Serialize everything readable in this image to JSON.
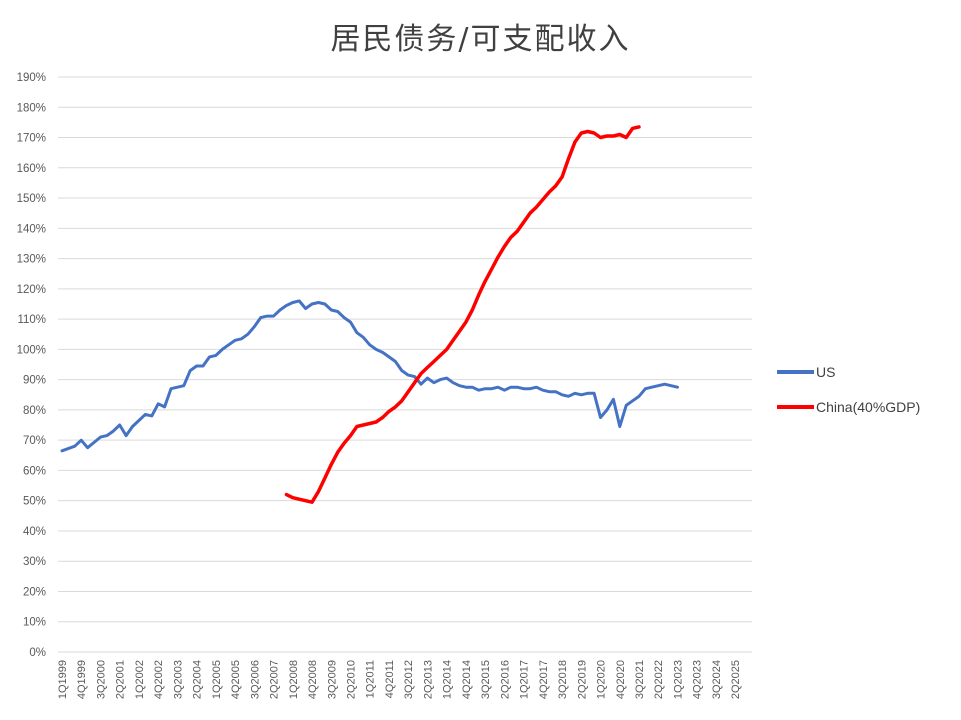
{
  "chart_data": {
    "type": "line",
    "title": "居民债务/可支配收入",
    "xlabel": "",
    "ylabel": "",
    "ylim": [
      0,
      190
    ],
    "y_ticks": [
      0,
      10,
      20,
      30,
      40,
      50,
      60,
      70,
      80,
      90,
      100,
      110,
      120,
      130,
      140,
      150,
      160,
      170,
      180,
      190
    ],
    "y_tick_format": "percent",
    "x_range": [
      "1Q1999",
      "4Q2025"
    ],
    "x_tick_labels": [
      "1Q1999",
      "4Q1999",
      "3Q2000",
      "2Q2001",
      "1Q2002",
      "4Q2002",
      "3Q2003",
      "2Q2004",
      "1Q2005",
      "4Q2005",
      "3Q2006",
      "2Q2007",
      "1Q2008",
      "4Q2008",
      "3Q2009",
      "2Q2010",
      "1Q2011",
      "4Q2011",
      "3Q2012",
      "2Q2013",
      "1Q2014",
      "4Q2014",
      "3Q2015",
      "2Q2016",
      "1Q2017",
      "4Q2017",
      "3Q2018",
      "2Q2019",
      "1Q2020",
      "4Q2020",
      "3Q2021",
      "2Q2022",
      "1Q2023",
      "4Q2023",
      "3Q2024",
      "2Q2025"
    ],
    "grid": true,
    "legend": "right",
    "series": [
      {
        "name": "US",
        "color": "#4472C4",
        "points": [
          [
            "1Q1999",
            66.5
          ],
          [
            "3Q1999",
            68
          ],
          [
            "4Q1999",
            70
          ],
          [
            "1Q2000",
            67.5
          ],
          [
            "3Q2000",
            71
          ],
          [
            "4Q2000",
            71.5
          ],
          [
            "1Q2001",
            73
          ],
          [
            "2Q2001",
            75
          ],
          [
            "3Q2001",
            71.5
          ],
          [
            "4Q2001",
            74.5
          ],
          [
            "1Q2002",
            76.5
          ],
          [
            "2Q2002",
            78.5
          ],
          [
            "3Q2002",
            78
          ],
          [
            "4Q2002",
            82
          ],
          [
            "1Q2003",
            81
          ],
          [
            "2Q2003",
            87
          ],
          [
            "3Q2003",
            87.5
          ],
          [
            "4Q2003",
            88
          ],
          [
            "1Q2004",
            93
          ],
          [
            "2Q2004",
            94.5
          ],
          [
            "3Q2004",
            94.5
          ],
          [
            "4Q2004",
            97.5
          ],
          [
            "1Q2005",
            98
          ],
          [
            "2Q2005",
            100
          ],
          [
            "3Q2005",
            101.5
          ],
          [
            "4Q2005",
            103
          ],
          [
            "1Q2006",
            103.5
          ],
          [
            "2Q2006",
            105
          ],
          [
            "3Q2006",
            107.5
          ],
          [
            "4Q2006",
            110.5
          ],
          [
            "1Q2007",
            111
          ],
          [
            "2Q2007",
            111
          ],
          [
            "3Q2007",
            113
          ],
          [
            "4Q2007",
            114.5
          ],
          [
            "1Q2008",
            115.5
          ],
          [
            "2Q2008",
            116
          ],
          [
            "3Q2008",
            113.5
          ],
          [
            "4Q2008",
            115
          ],
          [
            "1Q2009",
            115.5
          ],
          [
            "2Q2009",
            115
          ],
          [
            "3Q2009",
            113
          ],
          [
            "4Q2009",
            112.5
          ],
          [
            "1Q2010",
            110.5
          ],
          [
            "2Q2010",
            109
          ],
          [
            "3Q2010",
            105.5
          ],
          [
            "4Q2010",
            104
          ],
          [
            "1Q2011",
            101.5
          ],
          [
            "2Q2011",
            100
          ],
          [
            "3Q2011",
            99
          ],
          [
            "4Q2011",
            97.5
          ],
          [
            "1Q2012",
            96
          ],
          [
            "2Q2012",
            93
          ],
          [
            "3Q2012",
            91.5
          ],
          [
            "4Q2012",
            91
          ],
          [
            "1Q2013",
            88.5
          ],
          [
            "2Q2013",
            90.5
          ],
          [
            "3Q2013",
            89
          ],
          [
            "4Q2013",
            90
          ],
          [
            "1Q2014",
            90.5
          ],
          [
            "2Q2014",
            89
          ],
          [
            "3Q2014",
            88
          ],
          [
            "4Q2014",
            87.5
          ],
          [
            "1Q2015",
            87.5
          ],
          [
            "2Q2015",
            86.5
          ],
          [
            "3Q2015",
            87
          ],
          [
            "4Q2015",
            87
          ],
          [
            "1Q2016",
            87.5
          ],
          [
            "2Q2016",
            86.5
          ],
          [
            "3Q2016",
            87.5
          ],
          [
            "4Q2016",
            87.5
          ],
          [
            "1Q2017",
            87
          ],
          [
            "2Q2017",
            87
          ],
          [
            "3Q2017",
            87.5
          ],
          [
            "4Q2017",
            86.5
          ],
          [
            "1Q2018",
            86
          ],
          [
            "2Q2018",
            86
          ],
          [
            "3Q2018",
            85
          ],
          [
            "4Q2018",
            84.5
          ],
          [
            "1Q2019",
            85.5
          ],
          [
            "2Q2019",
            85
          ],
          [
            "3Q2019",
            85.5
          ],
          [
            "4Q2019",
            85.5
          ],
          [
            "1Q2020",
            77.5
          ],
          [
            "2Q2020",
            80
          ],
          [
            "3Q2020",
            83.5
          ],
          [
            "4Q2020",
            74.5
          ],
          [
            "1Q2021",
            81.5
          ],
          [
            "2Q2021",
            83
          ],
          [
            "3Q2021",
            84.5
          ],
          [
            "4Q2021",
            87
          ],
          [
            "1Q2022",
            87.5
          ],
          [
            "2Q2022",
            88
          ],
          [
            "3Q2022",
            88.5
          ],
          [
            "4Q2022",
            88
          ],
          [
            "1Q2023",
            87.5
          ]
        ]
      },
      {
        "name": "China(40%GDP)",
        "color": "#FF0000",
        "points": [
          [
            "4Q2007",
            52
          ],
          [
            "1Q2008",
            51
          ],
          [
            "3Q2008",
            50
          ],
          [
            "4Q2008",
            49.5
          ],
          [
            "1Q2009",
            53
          ],
          [
            "2Q2009",
            57.5
          ],
          [
            "3Q2009",
            62
          ],
          [
            "4Q2009",
            66
          ],
          [
            "1Q2010",
            69
          ],
          [
            "2Q2010",
            71.5
          ],
          [
            "3Q2010",
            74.5
          ],
          [
            "4Q2010",
            75
          ],
          [
            "1Q2011",
            75.5
          ],
          [
            "2Q2011",
            76
          ],
          [
            "3Q2011",
            77.5
          ],
          [
            "4Q2011",
            79.5
          ],
          [
            "1Q2012",
            81
          ],
          [
            "2Q2012",
            83
          ],
          [
            "3Q2012",
            86
          ],
          [
            "4Q2012",
            89
          ],
          [
            "1Q2013",
            92
          ],
          [
            "2Q2013",
            94
          ],
          [
            "3Q2013",
            96
          ],
          [
            "4Q2013",
            98
          ],
          [
            "1Q2014",
            100
          ],
          [
            "2Q2014",
            103
          ],
          [
            "3Q2014",
            106
          ],
          [
            "4Q2014",
            109
          ],
          [
            "1Q2015",
            113
          ],
          [
            "2Q2015",
            118
          ],
          [
            "3Q2015",
            122.5
          ],
          [
            "4Q2015",
            126.5
          ],
          [
            "1Q2016",
            130.5
          ],
          [
            "2Q2016",
            134
          ],
          [
            "3Q2016",
            137
          ],
          [
            "4Q2016",
            139
          ],
          [
            "1Q2017",
            142
          ],
          [
            "2Q2017",
            145
          ],
          [
            "3Q2017",
            147
          ],
          [
            "4Q2017",
            149.5
          ],
          [
            "1Q2018",
            152
          ],
          [
            "2Q2018",
            154
          ],
          [
            "3Q2018",
            157
          ],
          [
            "4Q2018",
            163
          ],
          [
            "1Q2019",
            168.5
          ],
          [
            "2Q2019",
            171.5
          ],
          [
            "3Q2019",
            172
          ],
          [
            "4Q2019",
            171.5
          ],
          [
            "1Q2020",
            170
          ],
          [
            "2Q2020",
            170.5
          ],
          [
            "3Q2020",
            170.5
          ],
          [
            "4Q2020",
            171
          ],
          [
            "1Q2021",
            170
          ],
          [
            "2Q2021",
            173
          ],
          [
            "3Q2021",
            173.5
          ]
        ]
      }
    ]
  }
}
